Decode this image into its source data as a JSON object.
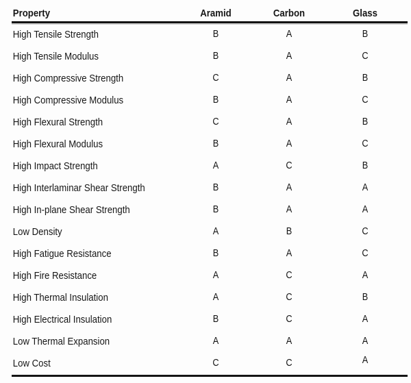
{
  "page": {
    "background_color": "#fdfdfd",
    "text_color": "#161616",
    "rule_color": "#141414"
  },
  "table": {
    "columns": [
      {
        "key": "property",
        "label": "Property"
      },
      {
        "key": "aramid",
        "label": "Aramid"
      },
      {
        "key": "carbon",
        "label": "Carbon"
      },
      {
        "key": "glass",
        "label": "Glass"
      }
    ],
    "rows": [
      {
        "property": "High Tensile Strength",
        "aramid": "B",
        "carbon": "A",
        "glass": "B"
      },
      {
        "property": "High Tensile Modulus",
        "aramid": "B",
        "carbon": "A",
        "glass": "C"
      },
      {
        "property": "High Compressive Strength",
        "aramid": "C",
        "carbon": "A",
        "glass": "B"
      },
      {
        "property": "High Compressive Modulus",
        "aramid": "B",
        "carbon": "A",
        "glass": "C"
      },
      {
        "property": "High Flexural Strength",
        "aramid": "C",
        "carbon": "A",
        "glass": "B"
      },
      {
        "property": "High Flexural Modulus",
        "aramid": "B",
        "carbon": "A",
        "glass": "C"
      },
      {
        "property": "High Impact Strength",
        "aramid": "A",
        "carbon": "C",
        "glass": "B"
      },
      {
        "property": "High Interlaminar Shear Strength",
        "aramid": "B",
        "carbon": "A",
        "glass": "A"
      },
      {
        "property": "High In-plane Shear Strength",
        "aramid": "B",
        "carbon": "A",
        "glass": "A"
      },
      {
        "property": "Low Density",
        "aramid": "A",
        "carbon": "B",
        "glass": "C"
      },
      {
        "property": "High Fatigue Resistance",
        "aramid": "B",
        "carbon": "A",
        "glass": "C"
      },
      {
        "property": "High Fire Resistance",
        "aramid": "A",
        "carbon": "C",
        "glass": "A"
      },
      {
        "property": "High Thermal Insulation",
        "aramid": "A",
        "carbon": "C",
        "glass": "B"
      },
      {
        "property": "High Electrical Insulation",
        "aramid": "B",
        "carbon": "C",
        "glass": "A"
      },
      {
        "property": "Low Thermal Expansion",
        "aramid": "A",
        "carbon": "A",
        "glass": "A"
      },
      {
        "property": "Low Cost",
        "aramid": "C",
        "carbon": "C",
        "glass": "A"
      }
    ]
  }
}
